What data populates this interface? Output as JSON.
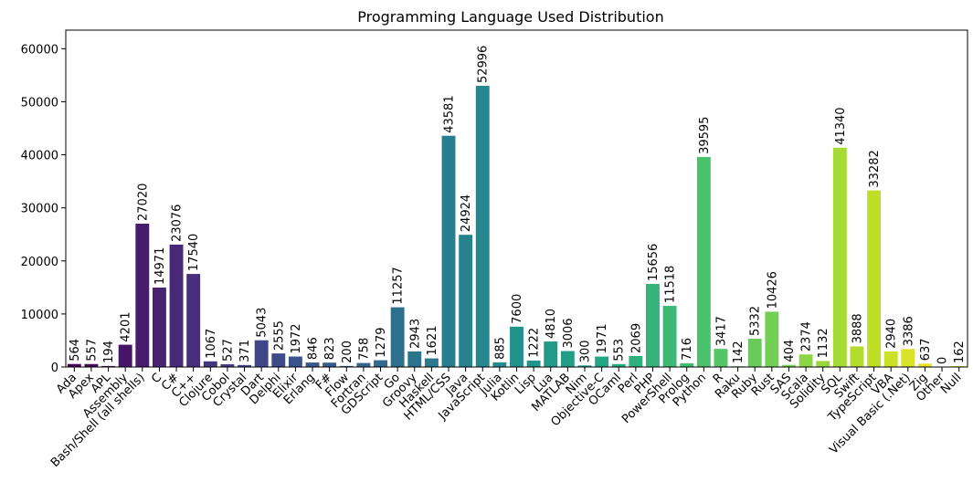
{
  "chart_data": {
    "type": "bar",
    "title": "Programming Language Used Distribution",
    "xlabel": "",
    "ylabel": "",
    "ylim": [
      0,
      63500
    ],
    "yticks": [
      0,
      10000,
      20000,
      30000,
      40000,
      50000,
      60000
    ],
    "grid": false,
    "palette": "viridis",
    "categories": [
      "Ada",
      "Apex",
      "APL",
      "Assembly",
      "Bash/Shell (all shells)",
      "C",
      "C#",
      "C++",
      "Clojure",
      "Cobol",
      "Crystal",
      "Dart",
      "Delphi",
      "Elixir",
      "Erlang",
      "F#",
      "Flow",
      "Fortran",
      "GDScript",
      "Go",
      "Groovy",
      "Haskell",
      "HTML/CSS",
      "Java",
      "JavaScript",
      "Julia",
      "Kotlin",
      "Lisp",
      "Lua",
      "MATLAB",
      "Nim",
      "Objective-C",
      "OCaml",
      "Perl",
      "PHP",
      "PowerShell",
      "Prolog",
      "Python",
      "R",
      "Raku",
      "Ruby",
      "Rust",
      "SAS",
      "Scala",
      "Solidity",
      "SQL",
      "Swift",
      "TypeScript",
      "VBA",
      "Visual Basic (.Net)",
      "Zig",
      "Other",
      "Null"
    ],
    "values": [
      564,
      557,
      194,
      4201,
      27020,
      14971,
      23076,
      17540,
      1067,
      527,
      371,
      5043,
      2555,
      1972,
      846,
      823,
      200,
      758,
      1279,
      11257,
      2943,
      1621,
      43581,
      24924,
      52996,
      885,
      7600,
      1222,
      4810,
      3006,
      300,
      1971,
      553,
      2069,
      15656,
      11518,
      716,
      39595,
      3417,
      142,
      5332,
      10426,
      404,
      2374,
      1132,
      41340,
      3888,
      33282,
      2940,
      3386,
      637,
      0,
      162
    ]
  }
}
